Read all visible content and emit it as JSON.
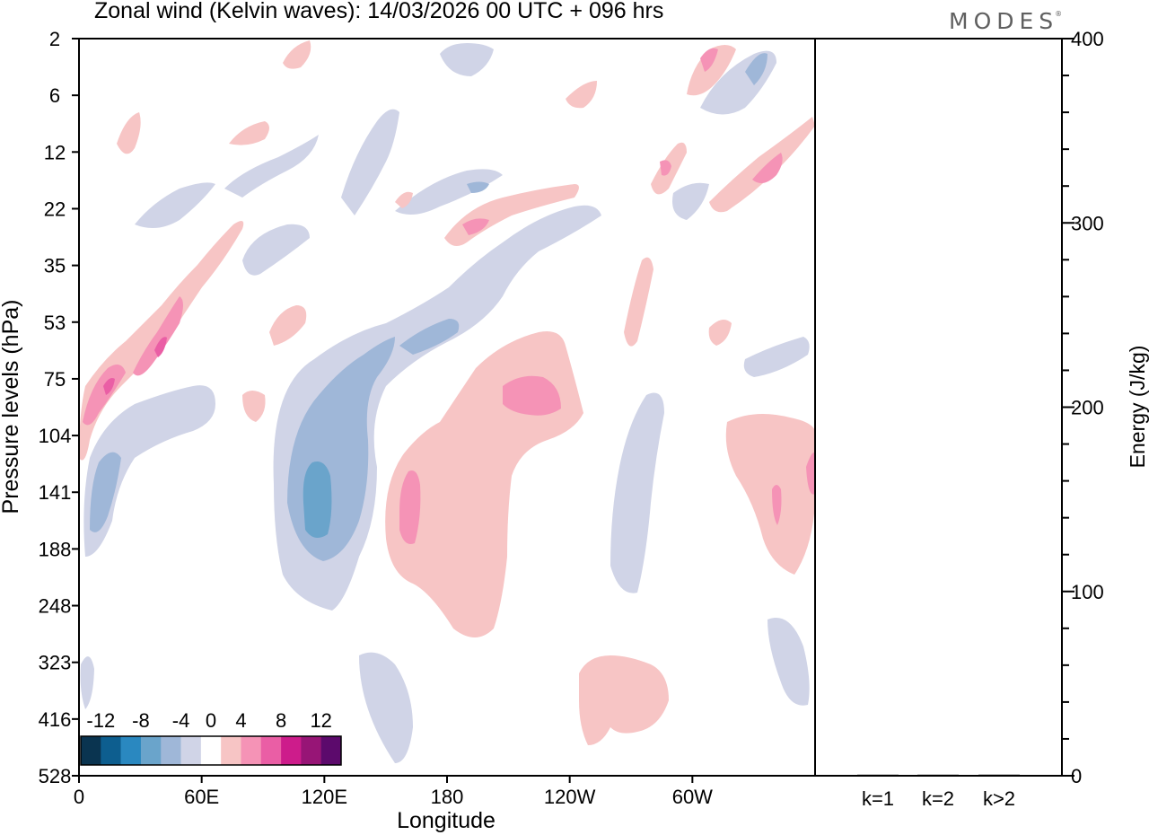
{
  "header": {
    "title": "Zonal wind (Kelvin waves):  14/03/2026  00 UTC  + 096 hrs",
    "logo": "MODES",
    "logo_mark": "®"
  },
  "chart_data": [
    {
      "type": "heatmap",
      "title": "Zonal wind (Kelvin waves):  14/03/2026  00 UTC  + 096 hrs",
      "xlabel": "Longitude",
      "ylabel": "Pressure levels (hPa)",
      "x_ticks": [
        "0",
        "60E",
        "120E",
        "180",
        "120W",
        "60W"
      ],
      "y_ticks": [
        "2",
        "6",
        "12",
        "22",
        "35",
        "53",
        "75",
        "104",
        "141",
        "188",
        "248",
        "323",
        "416",
        "528"
      ],
      "colorbar": {
        "labels": [
          "-12",
          "-8",
          "-4",
          "0",
          "4",
          "8",
          "12"
        ],
        "levels": [
          -14,
          -12,
          -10,
          -8,
          -6,
          -4,
          -2,
          2,
          4,
          6,
          8,
          10,
          12,
          14
        ],
        "colors": [
          "#0a3450",
          "#0d5e8f",
          "#2a88c0",
          "#6aa4cb",
          "#9fb7d8",
          "#d0d4e7",
          "#ffffff",
          "#f7c5c5",
          "#f593b6",
          "#ea5ea5",
          "#cd1c8b",
          "#971576",
          "#5c0a6c"
        ]
      },
      "features": [
        {
          "sign": "negative",
          "label": "easterly anomaly 60E-150E",
          "intensity": "-10 to -4"
        },
        {
          "sign": "positive",
          "label": "westerly anomaly 150E-150W",
          "intensity": "4 to 8"
        },
        {
          "sign": "positive",
          "label": "tilted westerly band 0-50E, 50-120 hPa",
          "intensity": "up to 10"
        },
        {
          "sign": "positive",
          "label": "westerly anomaly 30W-0, 100-200 hPa",
          "intensity": "4 to 8"
        }
      ]
    },
    {
      "type": "bar",
      "xlabel": "",
      "ylabel": "Energy (J/kg)",
      "categories": [
        "k=1",
        "k=2",
        "k>2"
      ],
      "values": [
        0.3,
        0.3,
        0.6
      ],
      "ylim": [
        0,
        400
      ],
      "y_ticks": [
        "0",
        "100",
        "200",
        "300",
        "400"
      ]
    }
  ]
}
